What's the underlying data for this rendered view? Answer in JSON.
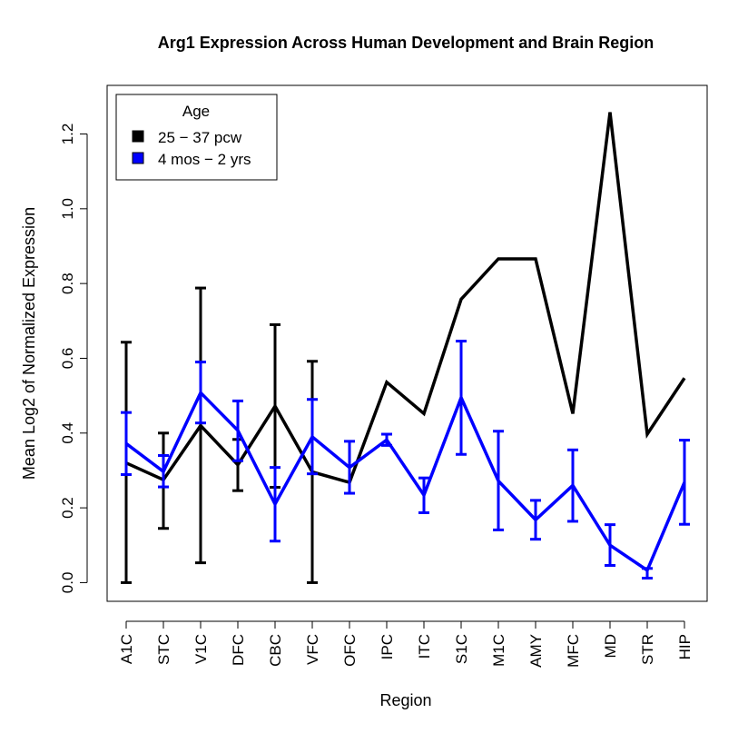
{
  "chart_data": {
    "type": "line",
    "title": "Arg1 Expression Across Human Development and Brain Region",
    "xlabel": "Region",
    "ylabel": "Mean Log2 of Normalized Expression",
    "categories": [
      "A1C",
      "STC",
      "V1C",
      "DFC",
      "CBC",
      "VFC",
      "OFC",
      "IPC",
      "ITC",
      "S1C",
      "M1C",
      "AMY",
      "MFC",
      "MD",
      "STR",
      "HIP"
    ],
    "ylim": [
      -0.05,
      1.33
    ],
    "yticks": [
      "0.0",
      "0.2",
      "0.4",
      "0.6",
      "0.8",
      "1.0",
      "1.2"
    ],
    "ytick_values": [
      0,
      0.2,
      0.4,
      0.6,
      0.8,
      1.0,
      1.2
    ],
    "grid": false,
    "legend": {
      "title": "Age",
      "placement": "top-left",
      "entries": [
        "25 − 37 pcw",
        "4 mos − 2 yrs"
      ]
    },
    "series": [
      {
        "name": "25 − 37 pcw",
        "color": "#000000",
        "values": [
          0.32,
          0.275,
          0.42,
          0.315,
          0.472,
          0.296,
          0.268,
          0.536,
          0.452,
          0.758,
          0.866,
          0.866,
          0.452,
          1.258,
          0.397,
          0.547
        ],
        "err_low": [
          0.0,
          0.145,
          0.053,
          0.246,
          0.255,
          0.0,
          null,
          null,
          null,
          null,
          null,
          null,
          null,
          null,
          null,
          null
        ],
        "err_high": [
          0.643,
          0.4,
          0.788,
          0.383,
          0.69,
          0.592,
          null,
          null,
          null,
          null,
          null,
          null,
          null,
          null,
          null,
          null
        ]
      },
      {
        "name": "4 mos − 2 yrs",
        "color": "#0000ff",
        "values": [
          0.372,
          0.297,
          0.508,
          0.407,
          0.21,
          0.39,
          0.308,
          0.382,
          0.234,
          0.495,
          0.272,
          0.168,
          0.26,
          0.1,
          0.033,
          0.268
        ],
        "err_low": [
          0.289,
          0.256,
          0.427,
          0.326,
          0.111,
          0.291,
          0.239,
          0.367,
          0.187,
          0.343,
          0.141,
          0.116,
          0.164,
          0.046,
          0.012,
          0.156
        ],
        "err_high": [
          0.455,
          0.34,
          0.59,
          0.486,
          0.308,
          0.49,
          0.378,
          0.397,
          0.28,
          0.646,
          0.405,
          0.22,
          0.355,
          0.155,
          0.038,
          0.381
        ]
      }
    ]
  }
}
